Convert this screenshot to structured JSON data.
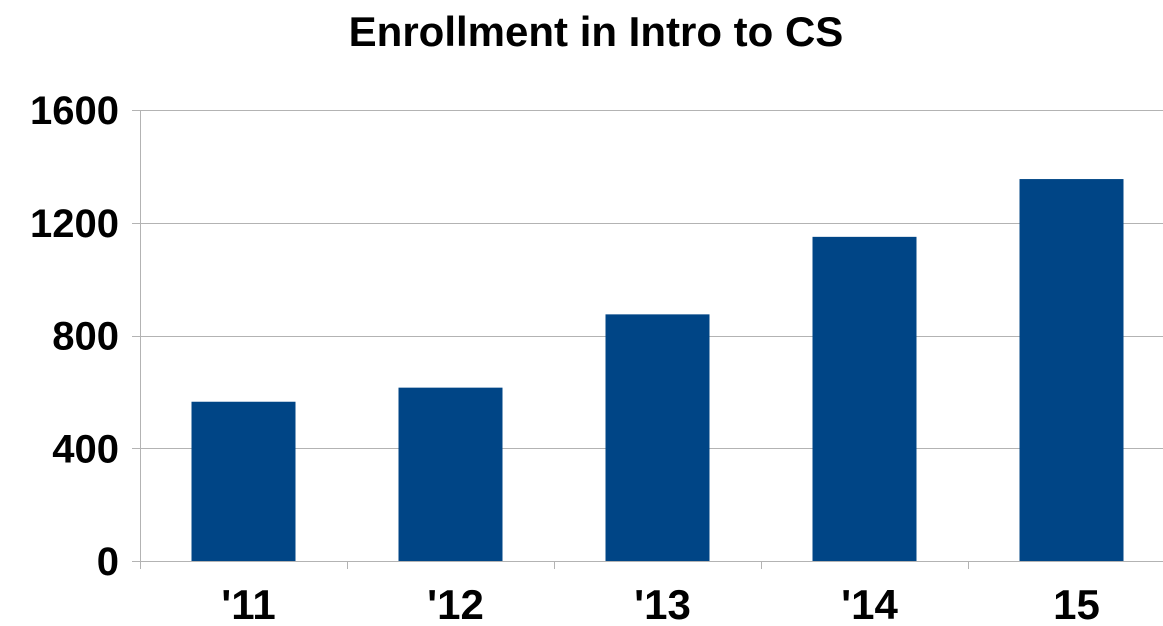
{
  "chart_data": {
    "type": "bar",
    "title": "Enrollment in Intro to CS",
    "xlabel": "",
    "ylabel": "",
    "categories": [
      "'11",
      "'12",
      "'13",
      "'14",
      "15"
    ],
    "values": [
      565,
      615,
      875,
      1150,
      1355
    ],
    "ylim": [
      0,
      1600
    ],
    "yticks": [
      0,
      400,
      800,
      1200,
      1600
    ],
    "grid": true,
    "colors": {
      "bar": "#004586",
      "grid": "#b3b3b3",
      "text": "#000000"
    }
  }
}
